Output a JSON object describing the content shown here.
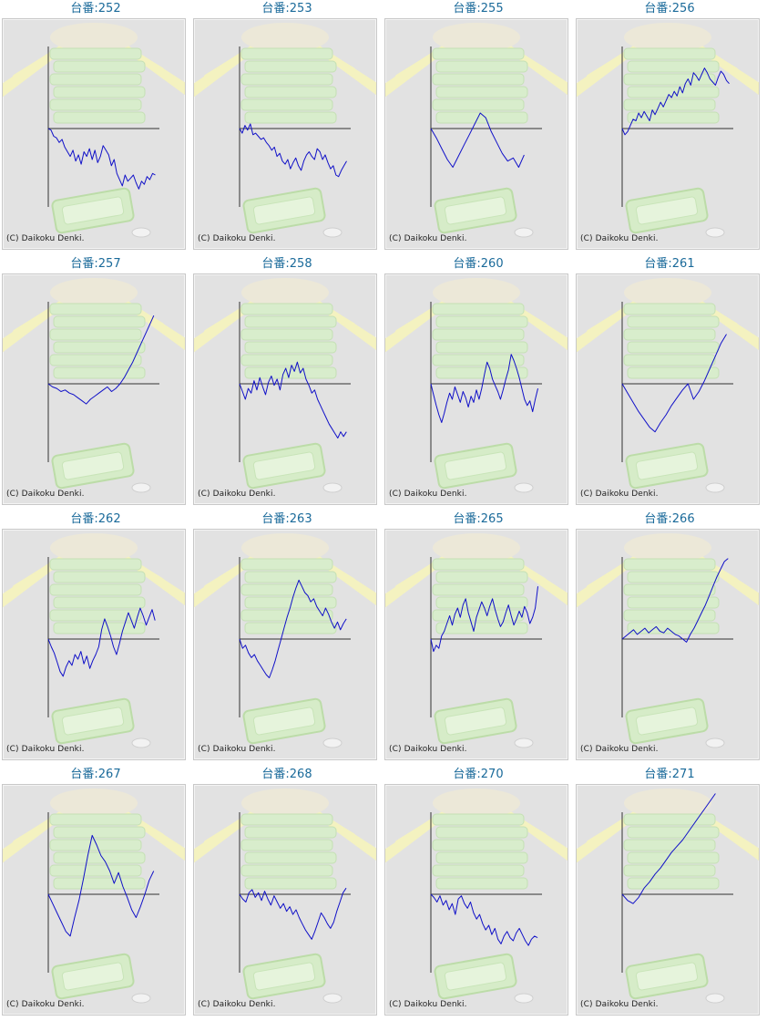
{
  "colors": {
    "line": "#1010c8",
    "axis": "#333333",
    "title": "#1a6a9a",
    "panel": "#e2e2e2"
  },
  "chart_data": [
    {
      "type": "line",
      "title": "台番:252",
      "credit": "(C) Daikoku Denki.",
      "y": [
        0,
        -2,
        -10,
        -12,
        -18,
        -14,
        -24,
        -30,
        -36,
        -28,
        -42,
        -34,
        -46,
        -30,
        -36,
        -26,
        -40,
        -28,
        -44,
        -36,
        -22,
        -28,
        -34,
        -48,
        -40,
        -58,
        -66,
        -74,
        -60,
        -68,
        -64,
        -60,
        -70,
        -78,
        -68,
        -72,
        -62,
        -66,
        -58,
        -60
      ]
    },
    {
      "type": "line",
      "title": "台番:253",
      "credit": "(C) Daikoku Denki.",
      "y": [
        0,
        -6,
        4,
        -2,
        6,
        -8,
        -6,
        -10,
        -14,
        -12,
        -18,
        -22,
        -28,
        -24,
        -36,
        -32,
        -42,
        -46,
        -40,
        -52,
        -44,
        -38,
        -48,
        -54,
        -42,
        -34,
        -30,
        -36,
        -40,
        -26,
        -30,
        -40,
        -34,
        -44,
        -52,
        -48,
        -60,
        -62,
        -54,
        -48,
        -42
      ]
    },
    {
      "type": "line",
      "title": "台番:255",
      "credit": "(C) Daikoku Denki.",
      "y": [
        0,
        -12,
        -26,
        -40,
        -50,
        -36,
        -22,
        -8,
        6,
        20,
        14,
        -4,
        -18,
        -32,
        -42,
        -38,
        -50,
        -34
      ]
    },
    {
      "type": "line",
      "title": "台番:256",
      "credit": "(C) Daikoku Denki.",
      "y": [
        0,
        -8,
        -4,
        4,
        12,
        10,
        20,
        14,
        22,
        16,
        10,
        24,
        18,
        26,
        34,
        28,
        36,
        44,
        40,
        48,
        42,
        54,
        46,
        58,
        64,
        56,
        72,
        68,
        62,
        70,
        78,
        72,
        64,
        60,
        56,
        66,
        74,
        70,
        62,
        58
      ]
    },
    {
      "type": "line",
      "title": "台番:257",
      "credit": "(C) Daikoku Denki.",
      "y": [
        0,
        -4,
        -6,
        -10,
        -8,
        -12,
        -14,
        -18,
        -22,
        -26,
        -20,
        -16,
        -12,
        -8,
        -4,
        -10,
        -6,
        0,
        8,
        18,
        28,
        40,
        52,
        64,
        76,
        88
      ]
    },
    {
      "type": "line",
      "title": "台番:258",
      "credit": "(C) Daikoku Denki.",
      "y": [
        0,
        -10,
        -20,
        -6,
        -12,
        4,
        -8,
        8,
        -4,
        -14,
        2,
        10,
        -2,
        6,
        -8,
        12,
        20,
        8,
        24,
        16,
        28,
        14,
        20,
        6,
        -2,
        -12,
        -8,
        -20,
        -28,
        -36,
        -44,
        -52,
        -58,
        -64,
        -70,
        -62,
        -68,
        -62
      ]
    },
    {
      "type": "line",
      "title": "台番:260",
      "credit": "(C) Daikoku Denki.",
      "y": [
        0,
        -14,
        -28,
        -40,
        -50,
        -38,
        -24,
        -12,
        -20,
        -4,
        -14,
        -24,
        -10,
        -18,
        -30,
        -16,
        -24,
        -8,
        -20,
        -6,
        12,
        28,
        20,
        6,
        -2,
        -10,
        -20,
        -8,
        6,
        18,
        38,
        30,
        20,
        8,
        -6,
        -20,
        -28,
        -22,
        -36,
        -20,
        -6
      ]
    },
    {
      "type": "line",
      "title": "台番:261",
      "credit": "(C) Daikoku Denki.",
      "y": [
        0,
        -12,
        -24,
        -36,
        -46,
        -56,
        -62,
        -50,
        -40,
        -28,
        -18,
        -8,
        0,
        -20,
        -10,
        4,
        20,
        36,
        52,
        64
      ]
    },
    {
      "type": "line",
      "title": "台番:262",
      "credit": "(C) Daikoku Denki.",
      "y": [
        0,
        -10,
        -18,
        -30,
        -42,
        -48,
        -36,
        -28,
        -34,
        -20,
        -26,
        -16,
        -32,
        -22,
        -38,
        -28,
        -20,
        -10,
        12,
        26,
        16,
        4,
        -10,
        -20,
        -6,
        10,
        22,
        34,
        24,
        14,
        28,
        40,
        30,
        18,
        28,
        38,
        24
      ]
    },
    {
      "type": "line",
      "title": "台番:263",
      "credit": "(C) Daikoku Denki.",
      "y": [
        0,
        -12,
        -8,
        -18,
        -24,
        -20,
        -28,
        -34,
        -40,
        -46,
        -50,
        -40,
        -28,
        -14,
        0,
        14,
        28,
        40,
        54,
        66,
        76,
        68,
        60,
        56,
        48,
        52,
        42,
        36,
        30,
        40,
        32,
        22,
        14,
        22,
        12,
        20,
        26
      ]
    },
    {
      "type": "line",
      "title": "台番:265",
      "credit": "(C) Daikoku Denki.",
      "y": [
        0,
        -16,
        -8,
        -12,
        4,
        10,
        20,
        30,
        18,
        32,
        40,
        28,
        44,
        52,
        34,
        22,
        10,
        28,
        38,
        48,
        40,
        30,
        42,
        52,
        38,
        26,
        16,
        22,
        34,
        44,
        30,
        18,
        26,
        36,
        28,
        42,
        34,
        20,
        28,
        40,
        68
      ]
    },
    {
      "type": "line",
      "title": "台番:266",
      "credit": "(C) Daikoku Denki.",
      "y": [
        0,
        4,
        8,
        12,
        6,
        10,
        14,
        8,
        12,
        16,
        10,
        8,
        14,
        10,
        6,
        4,
        0,
        -4,
        6,
        14,
        24,
        34,
        44,
        56,
        68,
        80,
        90,
        100,
        104
      ]
    },
    {
      "type": "line",
      "title": "台番:267",
      "credit": "(C) Daikoku Denki.",
      "y": [
        0,
        -12,
        -24,
        -36,
        -48,
        -54,
        -30,
        -8,
        20,
        50,
        76,
        64,
        50,
        42,
        30,
        14,
        28,
        10,
        -4,
        -20,
        -30,
        -16,
        0,
        18,
        30
      ]
    },
    {
      "type": "line",
      "title": "台番:268",
      "credit": "(C) Daikoku Denki.",
      "y": [
        0,
        -6,
        -10,
        2,
        6,
        -4,
        2,
        -8,
        4,
        -6,
        -14,
        -2,
        -10,
        -18,
        -12,
        -22,
        -16,
        -26,
        -20,
        -30,
        -38,
        -46,
        -52,
        -58,
        -48,
        -36,
        -24,
        -30,
        -38,
        -44,
        -36,
        -22,
        -10,
        2,
        8
      ]
    },
    {
      "type": "line",
      "title": "台番:270",
      "credit": "(C) Daikoku Denki.",
      "y": [
        0,
        -4,
        -10,
        -2,
        -14,
        -8,
        -20,
        -12,
        -26,
        -6,
        -2,
        -12,
        -18,
        -10,
        -24,
        -32,
        -26,
        -38,
        -46,
        -40,
        -52,
        -44,
        -58,
        -64,
        -54,
        -48,
        -56,
        -60,
        -50,
        -44,
        -52,
        -60,
        -66,
        -58,
        -54,
        -56
      ]
    },
    {
      "type": "line",
      "title": "台番:271",
      "credit": "(C) Daikoku Denki.",
      "y": [
        0,
        -8,
        -12,
        -4,
        8,
        16,
        26,
        34,
        44,
        54,
        62,
        70,
        80,
        90,
        100,
        110,
        120,
        130
      ]
    }
  ]
}
